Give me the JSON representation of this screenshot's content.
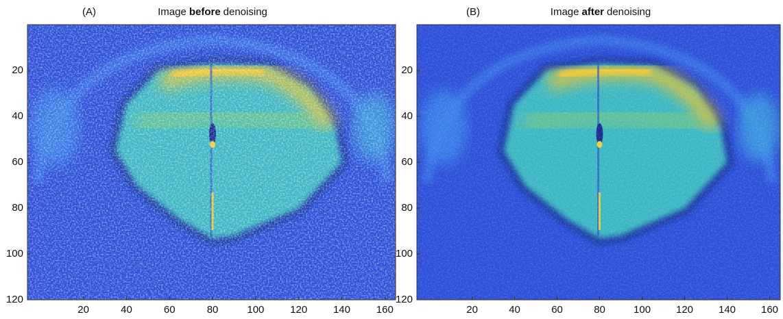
{
  "chart_data": [
    {
      "type": "image",
      "label": "(A)",
      "title_parts": [
        "Image",
        "before",
        "denoising"
      ],
      "xlim": [
        -6,
        165
      ],
      "ylim": [
        0,
        120
      ],
      "y_inverted": true,
      "xticks": [
        20,
        40,
        60,
        80,
        100,
        120,
        140,
        160
      ],
      "yticks": [
        20,
        40,
        60,
        80,
        100,
        120
      ],
      "noise": true
    },
    {
      "type": "image",
      "label": "(B)",
      "title_parts": [
        "Image",
        "after",
        "denoising"
      ],
      "xlim": [
        -6,
        165
      ],
      "ylim": [
        0,
        120
      ],
      "y_inverted": true,
      "xticks": [
        20,
        40,
        60,
        80,
        100,
        120,
        140,
        160
      ],
      "yticks": [
        20,
        40,
        60,
        80,
        100,
        120
      ],
      "noise": false
    }
  ]
}
